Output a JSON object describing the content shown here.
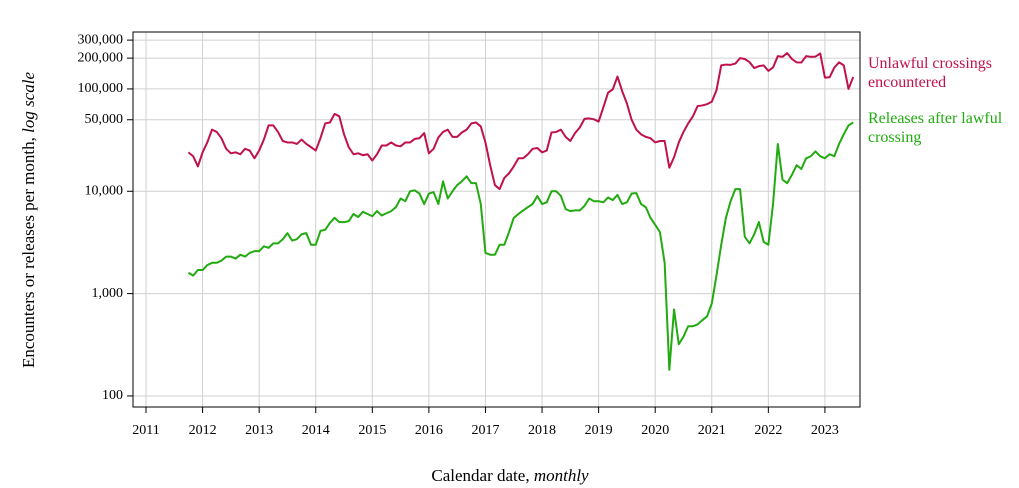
{
  "chart_data": {
    "type": "line",
    "ylabel": "Encounters or releases per month,",
    "ylabel_scale": "log scale",
    "xlabel": "Calendar date,",
    "xlabel_unit": "monthly",
    "yscale": "log",
    "grid": true,
    "xlim": [
      2010.77,
      2023.62
    ],
    "ylim": [
      78,
      360000
    ],
    "xticks": [
      2011,
      2012,
      2013,
      2014,
      2015,
      2016,
      2017,
      2018,
      2019,
      2020,
      2021,
      2022,
      2023
    ],
    "yticks": [
      100,
      {
        "value": 1000,
        "label": "1,000"
      },
      {
        "value": 10000,
        "label": "10,000"
      },
      {
        "value": 50000,
        "label": "50,000"
      },
      {
        "value": 100000,
        "label": "100,000"
      },
      {
        "value": 200000,
        "label": "200,000"
      },
      {
        "value": 300000,
        "label": "300,000"
      }
    ],
    "x": [
      2011.75,
      2011.833,
      2011.917,
      2012,
      2012.083,
      2012.167,
      2012.25,
      2012.333,
      2012.417,
      2012.5,
      2012.583,
      2012.667,
      2012.75,
      2012.833,
      2012.917,
      2013,
      2013.083,
      2013.167,
      2013.25,
      2013.333,
      2013.417,
      2013.5,
      2013.583,
      2013.667,
      2013.75,
      2013.833,
      2013.917,
      2014,
      2014.083,
      2014.167,
      2014.25,
      2014.333,
      2014.417,
      2014.5,
      2014.583,
      2014.667,
      2014.75,
      2014.833,
      2014.917,
      2015,
      2015.083,
      2015.167,
      2015.25,
      2015.333,
      2015.417,
      2015.5,
      2015.583,
      2015.667,
      2015.75,
      2015.833,
      2015.917,
      2016,
      2016.083,
      2016.167,
      2016.25,
      2016.333,
      2016.417,
      2016.5,
      2016.583,
      2016.667,
      2016.75,
      2016.833,
      2016.917,
      2017,
      2017.083,
      2017.167,
      2017.25,
      2017.333,
      2017.417,
      2017.5,
      2017.583,
      2017.667,
      2017.75,
      2017.833,
      2017.917,
      2018,
      2018.083,
      2018.167,
      2018.25,
      2018.333,
      2018.417,
      2018.5,
      2018.583,
      2018.667,
      2018.75,
      2018.833,
      2018.917,
      2019,
      2019.083,
      2019.167,
      2019.25,
      2019.333,
      2019.417,
      2019.5,
      2019.583,
      2019.667,
      2019.75,
      2019.833,
      2019.917,
      2020,
      2020.083,
      2020.167,
      2020.25,
      2020.333,
      2020.417,
      2020.5,
      2020.583,
      2020.667,
      2020.75,
      2020.833,
      2020.917,
      2021,
      2021.083,
      2021.167,
      2021.25,
      2021.333,
      2021.417,
      2021.5,
      2021.583,
      2021.667,
      2021.75,
      2021.833,
      2021.917,
      2022,
      2022.083,
      2022.167,
      2022.25,
      2022.333,
      2022.417,
      2022.5,
      2022.583,
      2022.667,
      2022.75,
      2022.833,
      2022.917,
      2023,
      2023.083,
      2023.167,
      2023.25,
      2023.333,
      2023.417,
      2023.5
    ],
    "series": [
      {
        "name": "Unlawful crossings encountered",
        "color": "#c0124a",
        "values": [
          24000,
          22000,
          17500,
          24000,
          30000,
          40000,
          38000,
          33000,
          26000,
          23500,
          24000,
          23000,
          26000,
          25000,
          21000,
          25000,
          32000,
          44000,
          44000,
          38000,
          31000,
          30000,
          30000,
          29000,
          32000,
          29000,
          27000,
          25000,
          33000,
          46000,
          47000,
          57000,
          54000,
          36000,
          27000,
          23000,
          23500,
          22500,
          23000,
          20000,
          23000,
          28000,
          28000,
          30000,
          28000,
          27500,
          30000,
          30000,
          32500,
          33000,
          37000,
          23500,
          26000,
          33500,
          38000,
          40000,
          34000,
          34000,
          37500,
          40000,
          46000,
          47000,
          43000,
          30000,
          18000,
          11500,
          10500,
          13500,
          15000,
          17500,
          21000,
          21000,
          23000,
          26000,
          26500,
          24000,
          25000,
          37500,
          38000,
          40000,
          34000,
          31000,
          37000,
          42000,
          51000,
          51500,
          50500,
          48000,
          66000,
          92000,
          99000,
          132000,
          95000,
          72000,
          50000,
          40000,
          36000,
          34000,
          33000,
          30000,
          31000,
          31000,
          17000,
          21500,
          30000,
          38000,
          46000,
          54000,
          68000,
          69000,
          71000,
          75000,
          97000,
          170000,
          173000,
          172000,
          177000,
          200000,
          196000,
          183000,
          160000,
          167000,
          170000,
          150000,
          162000,
          209000,
          206000,
          224000,
          196000,
          182000,
          181000,
          209000,
          206000,
          207000,
          222000,
          129000,
          130000,
          162000,
          182000,
          170000,
          100000,
          131000
        ]
      },
      {
        "name": "Releases after lawful crossing",
        "color": "#22aa11",
        "values": [
          1600,
          1500,
          1700,
          1700,
          1900,
          2000,
          2000,
          2100,
          2300,
          2300,
          2200,
          2400,
          2300,
          2500,
          2600,
          2600,
          2900,
          2800,
          3100,
          3100,
          3400,
          3900,
          3300,
          3400,
          3800,
          3900,
          3000,
          3000,
          4100,
          4200,
          4900,
          5500,
          5000,
          5000,
          5100,
          6000,
          5600,
          6300,
          6000,
          5700,
          6400,
          5800,
          6100,
          6400,
          7000,
          8500,
          8000,
          10000,
          10200,
          9500,
          7500,
          9500,
          9800,
          7500,
          12500,
          8500,
          10000,
          11500,
          12500,
          14000,
          12000,
          12000,
          7500,
          2500,
          2400,
          2400,
          3000,
          3000,
          4000,
          5500,
          6000,
          6500,
          7000,
          7500,
          9000,
          7500,
          7800,
          10000,
          10000,
          9000,
          6700,
          6400,
          6500,
          6500,
          7200,
          8500,
          8000,
          8000,
          7800,
          8700,
          8200,
          9200,
          7500,
          7800,
          9500,
          9600,
          7500,
          7000,
          5500,
          4700,
          4000,
          2000,
          180,
          700,
          320,
          380,
          480,
          480,
          500,
          550,
          600,
          800,
          1500,
          3000,
          5500,
          8000,
          10500,
          10500,
          3600,
          3100,
          3800,
          5000,
          3200,
          3000,
          7500,
          29000,
          13000,
          12000,
          14500,
          18000,
          16500,
          21000,
          22000,
          24500,
          22000,
          21000,
          23000,
          22000,
          29000,
          36000,
          44000,
          47000
        ]
      }
    ]
  }
}
